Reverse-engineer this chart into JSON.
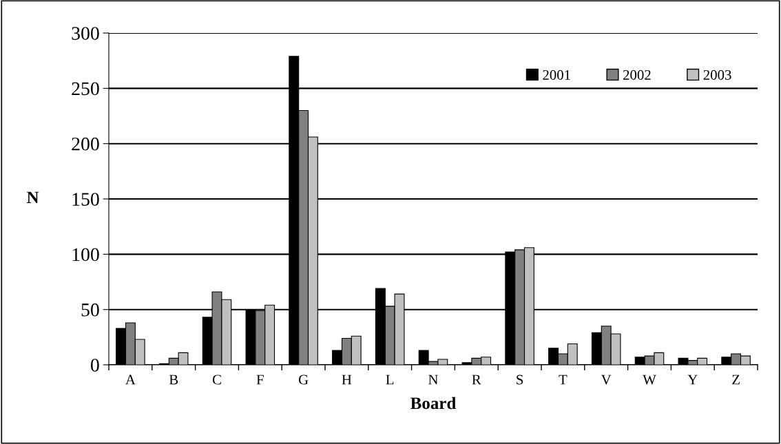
{
  "chart_data": {
    "type": "bar",
    "xlabel": "Board",
    "ylabel": "N",
    "categories": [
      "A",
      "B",
      "C",
      "F",
      "G",
      "H",
      "L",
      "N",
      "R",
      "S",
      "T",
      "V",
      "W",
      "Y",
      "Z"
    ],
    "series": [
      {
        "name": "2001",
        "color": "#000000",
        "values": [
          33,
          1,
          43,
          50,
          279,
          13,
          69,
          13,
          2,
          102,
          15,
          29,
          7,
          6,
          7
        ]
      },
      {
        "name": "2002",
        "color": "#808080",
        "values": [
          38,
          6,
          66,
          49,
          230,
          24,
          53,
          3,
          6,
          104,
          10,
          35,
          8,
          4,
          10
        ]
      },
      {
        "name": "2003",
        "color": "#c0c0c0",
        "values": [
          23,
          11,
          59,
          54,
          206,
          26,
          64,
          5,
          7,
          106,
          19,
          28,
          11,
          6,
          8
        ]
      }
    ],
    "ylim": [
      0,
      300
    ],
    "yticks": [
      0,
      50,
      100,
      150,
      200,
      250,
      300
    ],
    "grid": "y",
    "legend": "top right"
  }
}
